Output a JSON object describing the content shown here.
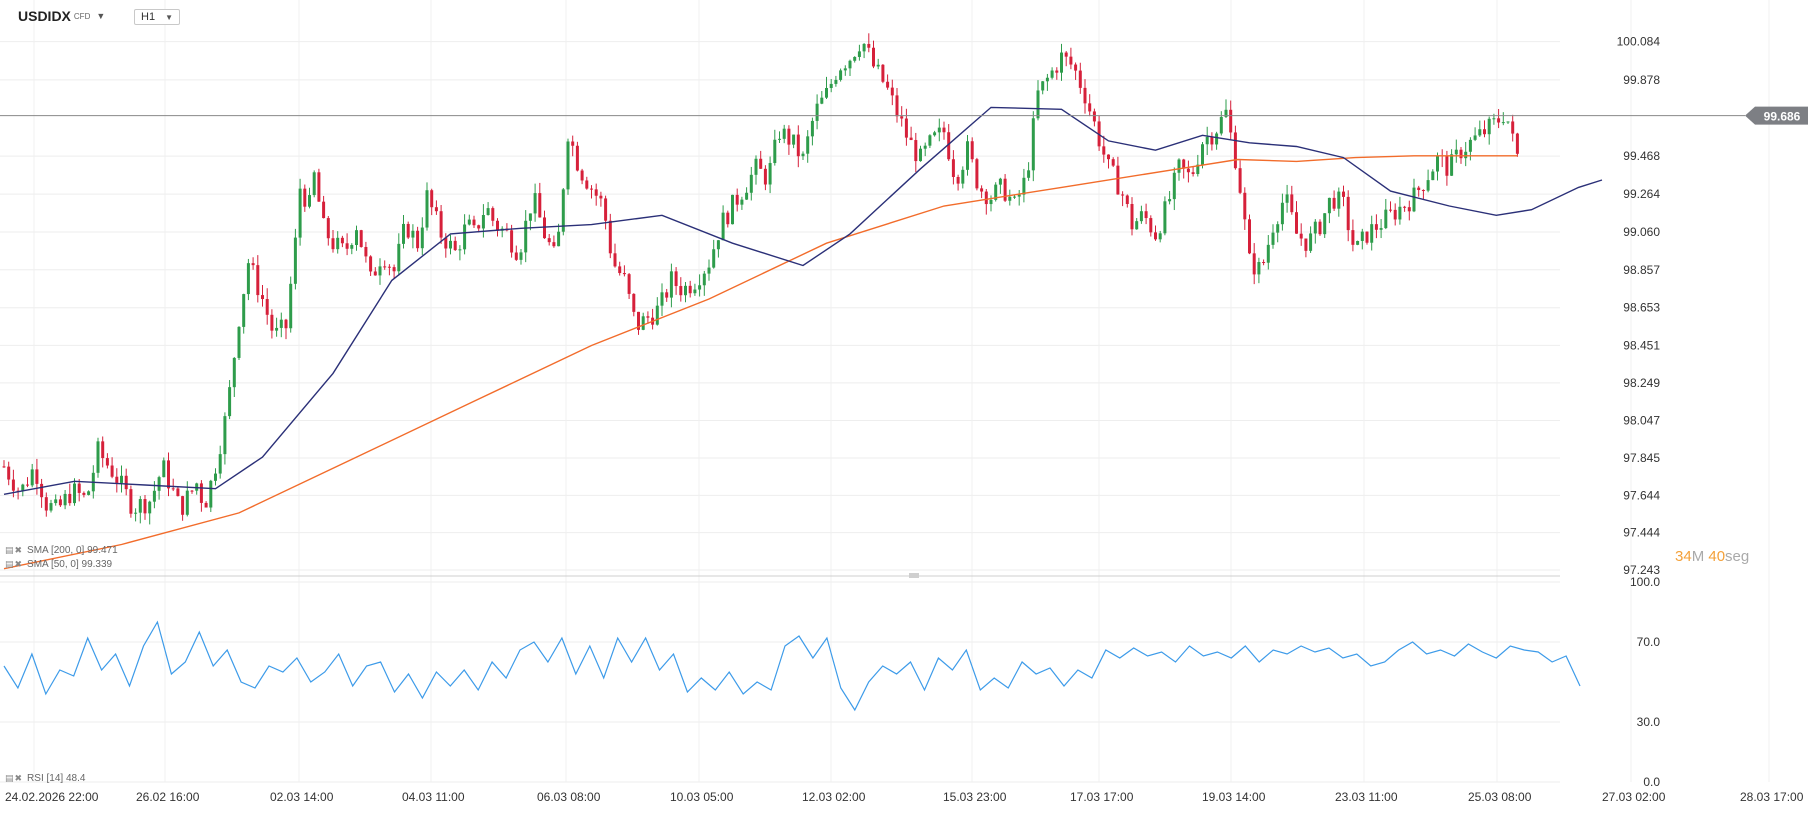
{
  "header": {
    "symbol": "USDIDX",
    "symbol_tag": "CFD",
    "timeframe": "H1"
  },
  "indicators": {
    "sma200_label": "SMA [200, 0]",
    "sma200_value": "99.471",
    "sma50_label": "SMA [50, 0]",
    "sma50_value": "99.339",
    "rsi_label": "RSI [14]",
    "rsi_value": "48.4"
  },
  "current_price": "99.686",
  "countdown": {
    "minutes": "34",
    "m_unit": "M",
    "seconds": "40",
    "s_unit": "seg"
  },
  "colors": {
    "up": "#2e9c4b",
    "down": "#d6203a",
    "sma200": "#f26c2b",
    "sma50": "#2b3078",
    "rsi": "#3d9be9",
    "price_line": "#888888"
  },
  "chart_data": {
    "type": "candlestick",
    "title": "USDIDX CFD H1",
    "y_ticks": [
      "100.084",
      "99.878",
      "99.468",
      "99.264",
      "99.060",
      "98.857",
      "98.653",
      "98.451",
      "98.249",
      "98.047",
      "97.845",
      "97.644",
      "97.444",
      "97.243"
    ],
    "ylim": [
      97.243,
      100.2
    ],
    "x_ticks": [
      "24.02.2026  22:00",
      "26.02  16:00",
      "02.03  14:00",
      "04.03  11:00",
      "06.03  08:00",
      "10.03  05:00",
      "12.03  02:00",
      "15.03  23:00",
      "17.03  17:00",
      "19.03  14:00",
      "23.03  11:00",
      "25.03  08:00",
      "27.03  02:00",
      "28.03  17:00"
    ],
    "price_path": [
      [
        0,
        97.8
      ],
      [
        14,
        97.66
      ],
      [
        26,
        97.8
      ],
      [
        36,
        97.6
      ],
      [
        45,
        97.56
      ],
      [
        58,
        97.67
      ],
      [
        70,
        97.62
      ],
      [
        80,
        97.88
      ],
      [
        95,
        97.75
      ],
      [
        110,
        97.58
      ],
      [
        125,
        97.62
      ],
      [
        135,
        97.8
      ],
      [
        150,
        97.57
      ],
      [
        165,
        97.72
      ],
      [
        170,
        97.58
      ],
      [
        178,
        97.75
      ],
      [
        190,
        98.1
      ],
      [
        200,
        98.6
      ],
      [
        208,
        98.9
      ],
      [
        220,
        98.7
      ],
      [
        230,
        98.5
      ],
      [
        240,
        98.55
      ],
      [
        248,
        99.0
      ],
      [
        252,
        99.3
      ],
      [
        260,
        99.2
      ],
      [
        265,
        99.4
      ],
      [
        270,
        99.1
      ],
      [
        280,
        99.0
      ],
      [
        290,
        98.95
      ],
      [
        300,
        99.1
      ],
      [
        312,
        98.8
      ],
      [
        322,
        98.95
      ],
      [
        332,
        98.85
      ],
      [
        342,
        99.1
      ],
      [
        352,
        99.0
      ],
      [
        360,
        99.25
      ],
      [
        372,
        99.05
      ],
      [
        384,
        98.95
      ],
      [
        394,
        99.1
      ],
      [
        400,
        99.05
      ],
      [
        410,
        99.2
      ],
      [
        418,
        99.1
      ],
      [
        428,
        99.05
      ],
      [
        438,
        98.95
      ],
      [
        450,
        99.25
      ],
      [
        460,
        99.05
      ],
      [
        470,
        98.9
      ],
      [
        480,
        99.6
      ],
      [
        490,
        99.4
      ],
      [
        500,
        99.3
      ],
      [
        510,
        99.2
      ],
      [
        518,
        98.9
      ],
      [
        528,
        98.8
      ],
      [
        538,
        98.55
      ],
      [
        548,
        98.6
      ],
      [
        558,
        98.65
      ],
      [
        568,
        98.8
      ],
      [
        578,
        98.75
      ],
      [
        588,
        98.8
      ],
      [
        600,
        98.9
      ],
      [
        610,
        99.1
      ],
      [
        620,
        99.2
      ],
      [
        630,
        99.3
      ],
      [
        640,
        99.4
      ],
      [
        650,
        99.35
      ],
      [
        660,
        99.6
      ],
      [
        670,
        99.55
      ],
      [
        680,
        99.45
      ],
      [
        690,
        99.7
      ],
      [
        700,
        99.8
      ],
      [
        710,
        99.95
      ],
      [
        720,
        100.0
      ],
      [
        730,
        100.1
      ],
      [
        740,
        99.95
      ],
      [
        750,
        99.85
      ],
      [
        760,
        99.7
      ],
      [
        770,
        99.55
      ],
      [
        780,
        99.45
      ],
      [
        790,
        99.55
      ],
      [
        800,
        99.6
      ],
      [
        810,
        99.35
      ],
      [
        820,
        99.5
      ],
      [
        830,
        99.3
      ],
      [
        840,
        99.25
      ],
      [
        850,
        99.3
      ],
      [
        860,
        99.2
      ],
      [
        870,
        99.35
      ],
      [
        880,
        99.8
      ],
      [
        890,
        99.9
      ],
      [
        900,
        100.0
      ],
      [
        910,
        99.95
      ],
      [
        920,
        99.8
      ],
      [
        930,
        99.6
      ],
      [
        940,
        99.4
      ],
      [
        950,
        99.3
      ],
      [
        960,
        99.1
      ],
      [
        970,
        99.15
      ],
      [
        980,
        99.05
      ],
      [
        990,
        99.2
      ],
      [
        1000,
        99.4
      ],
      [
        1010,
        99.35
      ],
      [
        1020,
        99.55
      ],
      [
        1030,
        99.6
      ],
      [
        1040,
        99.7
      ],
      [
        1050,
        99.4
      ],
      [
        1060,
        98.9
      ],
      [
        1070,
        98.85
      ],
      [
        1080,
        99.1
      ],
      [
        1090,
        99.25
      ],
      [
        1100,
        99.05
      ],
      [
        1110,
        99.0
      ],
      [
        1120,
        99.1
      ],
      [
        1130,
        99.25
      ],
      [
        1140,
        99.2
      ],
      [
        1150,
        98.95
      ],
      [
        1160,
        99.05
      ],
      [
        1170,
        99.1
      ],
      [
        1180,
        99.15
      ],
      [
        1190,
        99.2
      ],
      [
        1200,
        99.25
      ],
      [
        1210,
        99.35
      ],
      [
        1220,
        99.45
      ],
      [
        1230,
        99.4
      ],
      [
        1240,
        99.5
      ],
      [
        1250,
        99.55
      ],
      [
        1260,
        99.6
      ],
      [
        1270,
        99.65
      ],
      [
        1278,
        99.71
      ],
      [
        1284,
        99.55
      ],
      [
        1288,
        99.47
      ]
    ],
    "series": [
      {
        "name": "SMA [200, 0]",
        "points": [
          [
            0,
            97.25
          ],
          [
            100,
            97.38
          ],
          [
            200,
            97.55
          ],
          [
            300,
            97.85
          ],
          [
            400,
            98.15
          ],
          [
            500,
            98.45
          ],
          [
            600,
            98.7
          ],
          [
            700,
            99.0
          ],
          [
            800,
            99.2
          ],
          [
            900,
            99.3
          ],
          [
            1000,
            99.4
          ],
          [
            1050,
            99.45
          ],
          [
            1100,
            99.44
          ],
          [
            1150,
            99.46
          ],
          [
            1200,
            99.47
          ],
          [
            1250,
            99.47
          ],
          [
            1288,
            99.47
          ]
        ]
      },
      {
        "name": "SMA [50, 0]",
        "points": [
          [
            0,
            97.65
          ],
          [
            60,
            97.72
          ],
          [
            120,
            97.7
          ],
          [
            180,
            97.68
          ],
          [
            220,
            97.85
          ],
          [
            280,
            98.3
          ],
          [
            330,
            98.8
          ],
          [
            380,
            99.05
          ],
          [
            440,
            99.08
          ],
          [
            500,
            99.1
          ],
          [
            560,
            99.15
          ],
          [
            620,
            99.0
          ],
          [
            680,
            98.88
          ],
          [
            720,
            99.05
          ],
          [
            780,
            99.4
          ],
          [
            840,
            99.73
          ],
          [
            900,
            99.72
          ],
          [
            940,
            99.55
          ],
          [
            980,
            99.5
          ],
          [
            1020,
            99.58
          ],
          [
            1060,
            99.54
          ],
          [
            1100,
            99.52
          ],
          [
            1140,
            99.46
          ],
          [
            1180,
            99.28
          ],
          [
            1230,
            99.2
          ],
          [
            1270,
            99.15
          ],
          [
            1300,
            99.18
          ],
          [
            1340,
            99.3
          ],
          [
            1360,
            99.34
          ]
        ]
      },
      {
        "name": "RSI [14]",
        "points": [
          [
            0,
            58
          ],
          [
            20,
            47
          ],
          [
            40,
            64
          ],
          [
            60,
            44
          ],
          [
            80,
            56
          ],
          [
            100,
            53
          ],
          [
            120,
            72
          ],
          [
            140,
            56
          ],
          [
            160,
            64
          ],
          [
            180,
            48
          ],
          [
            200,
            68
          ],
          [
            220,
            80
          ],
          [
            240,
            54
          ],
          [
            260,
            60
          ],
          [
            280,
            75
          ],
          [
            300,
            58
          ],
          [
            320,
            66
          ],
          [
            340,
            50
          ],
          [
            360,
            47
          ],
          [
            380,
            58
          ],
          [
            400,
            55
          ],
          [
            420,
            62
          ],
          [
            440,
            50
          ],
          [
            460,
            55
          ],
          [
            480,
            64
          ],
          [
            500,
            48
          ],
          [
            520,
            58
          ],
          [
            540,
            60
          ],
          [
            560,
            45
          ],
          [
            580,
            54
          ],
          [
            600,
            42
          ],
          [
            620,
            55
          ],
          [
            640,
            48
          ],
          [
            660,
            56
          ],
          [
            680,
            46
          ],
          [
            700,
            60
          ],
          [
            720,
            52
          ],
          [
            740,
            66
          ],
          [
            760,
            70
          ],
          [
            780,
            60
          ],
          [
            800,
            72
          ],
          [
            820,
            54
          ],
          [
            840,
            68
          ],
          [
            860,
            52
          ],
          [
            880,
            72
          ],
          [
            900,
            60
          ],
          [
            920,
            72
          ],
          [
            940,
            56
          ],
          [
            960,
            64
          ],
          [
            980,
            45
          ],
          [
            1000,
            52
          ],
          [
            1020,
            46
          ],
          [
            1040,
            55
          ],
          [
            1060,
            44
          ],
          [
            1080,
            50
          ],
          [
            1100,
            46
          ],
          [
            1120,
            68
          ],
          [
            1140,
            73
          ],
          [
            1160,
            62
          ],
          [
            1180,
            72
          ],
          [
            1200,
            47
          ],
          [
            1220,
            36
          ],
          [
            1240,
            50
          ],
          [
            1260,
            58
          ],
          [
            1280,
            54
          ],
          [
            1300,
            60
          ],
          [
            1320,
            46
          ],
          [
            1340,
            62
          ],
          [
            1360,
            56
          ],
          [
            1380,
            66
          ],
          [
            1400,
            46
          ],
          [
            1420,
            52
          ],
          [
            1440,
            47
          ],
          [
            1460,
            60
          ],
          [
            1480,
            54
          ],
          [
            1500,
            57
          ],
          [
            1520,
            48
          ],
          [
            1540,
            56
          ],
          [
            1560,
            52
          ],
          [
            1580,
            66
          ],
          [
            1600,
            62
          ],
          [
            1620,
            67
          ],
          [
            1640,
            63
          ],
          [
            1660,
            65
          ],
          [
            1680,
            60
          ],
          [
            1700,
            68
          ],
          [
            1720,
            63
          ],
          [
            1740,
            65
          ],
          [
            1760,
            62
          ],
          [
            1780,
            68
          ],
          [
            1800,
            60
          ],
          [
            1820,
            66
          ],
          [
            1840,
            64
          ],
          [
            1860,
            68
          ],
          [
            1880,
            65
          ],
          [
            1900,
            67
          ],
          [
            1920,
            62
          ],
          [
            1940,
            64
          ],
          [
            1960,
            58
          ],
          [
            1980,
            60
          ],
          [
            2000,
            66
          ],
          [
            2020,
            70
          ],
          [
            2040,
            64
          ],
          [
            2060,
            66
          ],
          [
            2080,
            63
          ],
          [
            2100,
            69
          ],
          [
            2120,
            65
          ],
          [
            2140,
            62
          ],
          [
            2160,
            68
          ],
          [
            2180,
            66
          ],
          [
            2200,
            65
          ],
          [
            2220,
            60
          ],
          [
            2240,
            63
          ],
          [
            2260,
            48
          ]
        ]
      }
    ],
    "rsi_ticks": [
      "100.0",
      "70.0",
      "30.0",
      "0.0"
    ],
    "rsi_ylim": [
      0,
      100
    ]
  }
}
